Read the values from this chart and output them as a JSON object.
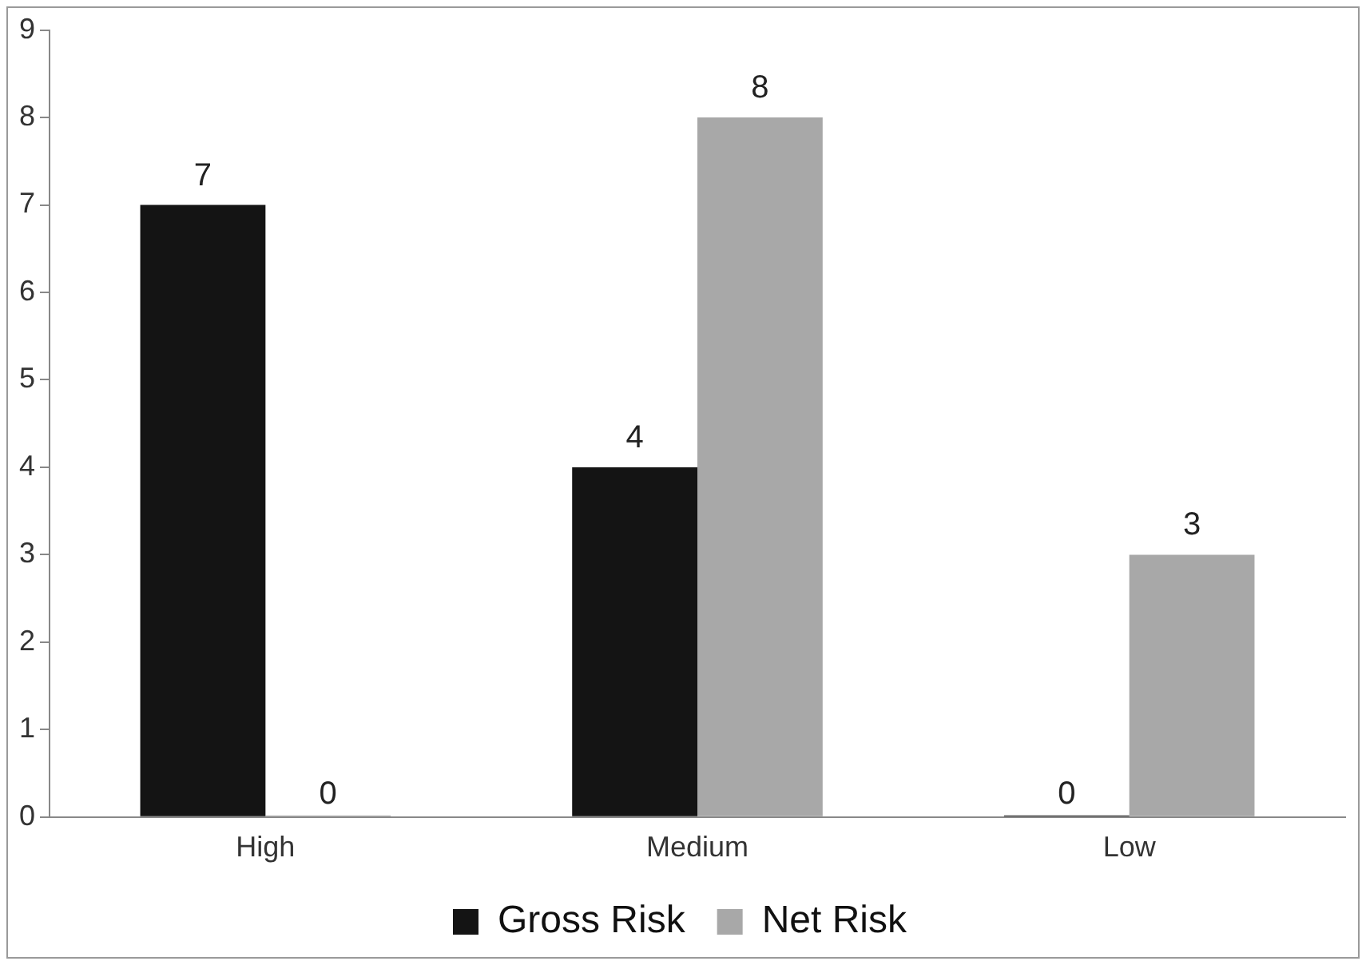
{
  "chart_data": {
    "type": "bar",
    "categories": [
      "High",
      "Medium",
      "Low"
    ],
    "series": [
      {
        "name": "Gross Risk",
        "color": "#141414",
        "values": [
          7,
          4,
          0
        ]
      },
      {
        "name": "Net Risk",
        "color": "#a8a8a8",
        "values": [
          0,
          8,
          3
        ]
      }
    ],
    "ylim": [
      0,
      9
    ],
    "yticks": [
      0,
      1,
      2,
      3,
      4,
      5,
      6,
      7,
      8,
      9
    ],
    "grid": false,
    "legend": "bottom",
    "data_labels": true
  }
}
